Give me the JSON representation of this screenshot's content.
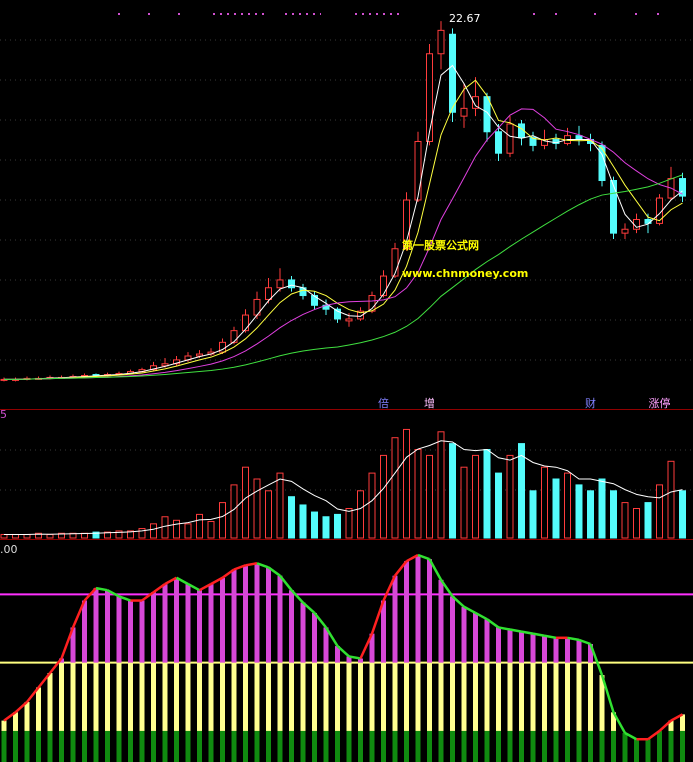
{
  "chart_data": [
    {
      "type": "candlestick",
      "ylim": [
        3.5,
        23.5
      ],
      "up_color": "#ff3c3c",
      "down_color": "#54fcfc",
      "moving_averages": [
        {
          "period": 3,
          "color": "#ffffff"
        },
        {
          "period": 5,
          "color": "#ffff40"
        },
        {
          "period": 10,
          "color": "#e040e0"
        },
        {
          "period": 30,
          "color": "#40e040"
        }
      ],
      "ohlc": [
        [
          4.25,
          4.4,
          4.2,
          4.3
        ],
        [
          4.3,
          4.4,
          4.2,
          4.3
        ],
        [
          4.3,
          4.45,
          4.25,
          4.35
        ],
        [
          4.35,
          4.45,
          4.3,
          4.35
        ],
        [
          4.35,
          4.5,
          4.3,
          4.4
        ],
        [
          4.4,
          4.5,
          4.35,
          4.4
        ],
        [
          4.4,
          4.55,
          4.35,
          4.45
        ],
        [
          4.45,
          4.6,
          4.4,
          4.5
        ],
        [
          4.55,
          4.6,
          4.45,
          4.5
        ],
        [
          4.5,
          4.65,
          4.45,
          4.55
        ],
        [
          4.55,
          4.7,
          4.5,
          4.6
        ],
        [
          4.6,
          4.8,
          4.55,
          4.7
        ],
        [
          4.7,
          4.9,
          4.65,
          4.8
        ],
        [
          4.8,
          5.2,
          4.75,
          5.0
        ],
        [
          5.0,
          5.4,
          4.9,
          5.1
        ],
        [
          5.1,
          5.5,
          5.0,
          5.3
        ],
        [
          5.3,
          5.7,
          5.2,
          5.5
        ],
        [
          5.5,
          5.8,
          5.4,
          5.6
        ],
        [
          5.6,
          5.9,
          5.5,
          5.7
        ],
        [
          5.7,
          6.4,
          5.6,
          6.2
        ],
        [
          6.2,
          7.0,
          6.1,
          6.8
        ],
        [
          6.8,
          7.9,
          6.7,
          7.6
        ],
        [
          7.6,
          8.8,
          7.4,
          8.4
        ],
        [
          8.4,
          9.5,
          8.2,
          9.0
        ],
        [
          9.0,
          10.0,
          8.8,
          9.4
        ],
        [
          9.4,
          9.6,
          8.8,
          9.0
        ],
        [
          9.0,
          9.2,
          8.4,
          8.6
        ],
        [
          8.6,
          8.8,
          7.9,
          8.1
        ],
        [
          8.1,
          8.4,
          7.6,
          7.9
        ],
        [
          7.9,
          8.0,
          7.2,
          7.4
        ],
        [
          7.3,
          7.7,
          7.0,
          7.4
        ],
        [
          7.4,
          8.0,
          7.3,
          7.8
        ],
        [
          7.8,
          8.8,
          7.7,
          8.6
        ],
        [
          8.6,
          9.9,
          8.5,
          9.6
        ],
        [
          9.6,
          11.3,
          9.5,
          11.0
        ],
        [
          11.0,
          13.9,
          10.9,
          13.5
        ],
        [
          13.5,
          17.0,
          13.4,
          16.5
        ],
        [
          16.5,
          21.5,
          16.3,
          21.0
        ],
        [
          21.0,
          22.67,
          20.2,
          22.2
        ],
        [
          22.0,
          22.3,
          17.5,
          18.0
        ],
        [
          17.8,
          19.5,
          17.2,
          18.2
        ],
        [
          18.2,
          19.8,
          17.8,
          18.8
        ],
        [
          18.8,
          19.0,
          16.5,
          17.0
        ],
        [
          17.0,
          17.4,
          15.5,
          15.9
        ],
        [
          15.9,
          17.8,
          15.7,
          17.4
        ],
        [
          17.4,
          17.6,
          16.3,
          16.7
        ],
        [
          16.7,
          17.0,
          16.0,
          16.3
        ],
        [
          16.3,
          17.1,
          16.1,
          16.6
        ],
        [
          16.6,
          16.9,
          16.1,
          16.4
        ],
        [
          16.4,
          17.2,
          16.3,
          16.8
        ],
        [
          16.8,
          17.3,
          16.3,
          16.6
        ],
        [
          16.6,
          16.9,
          16.0,
          16.4
        ],
        [
          16.3,
          16.5,
          14.2,
          14.5
        ],
        [
          14.5,
          14.7,
          11.5,
          11.8
        ],
        [
          11.8,
          12.3,
          11.5,
          12.0
        ],
        [
          12.0,
          12.8,
          11.8,
          12.5
        ],
        [
          12.5,
          12.8,
          11.8,
          12.3
        ],
        [
          12.3,
          13.8,
          12.2,
          13.6
        ],
        [
          13.6,
          15.2,
          13.5,
          14.6
        ],
        [
          14.6,
          14.9,
          13.4,
          13.7
        ]
      ],
      "high_label_index": 38,
      "events": [
        {
          "text": "倍",
          "index": 33,
          "color": "#8080ff"
        },
        {
          "text": "增",
          "index": 37,
          "color": "#ffc0ff"
        },
        {
          "text": "财",
          "index": 51,
          "color": "#8080ff"
        },
        {
          "text": "涨停",
          "index": 57,
          "color": "#ffa0ff"
        }
      ]
    },
    {
      "type": "bar",
      "pane_label": "5",
      "ylim": [
        0,
        100
      ],
      "moving_averages": [
        {
          "period": 5,
          "color": "#ffffff"
        }
      ],
      "values": [
        3,
        3,
        3,
        4,
        3,
        4,
        4,
        4,
        5,
        5,
        6,
        6,
        8,
        12,
        18,
        15,
        12,
        20,
        14,
        30,
        45,
        60,
        50,
        40,
        55,
        35,
        28,
        22,
        18,
        20,
        25,
        40,
        55,
        70,
        85,
        92,
        75,
        70,
        90,
        80,
        60,
        70,
        75,
        55,
        70,
        80,
        40,
        60,
        50,
        55,
        45,
        40,
        50,
        40,
        30,
        25,
        30,
        45,
        65,
        40
      ]
    },
    {
      "type": "bar",
      "pane_label": ".00",
      "ylim": [
        0,
        100
      ],
      "segments": [
        {
          "upto": 15,
          "color": "#108c10"
        },
        {
          "upto": 48,
          "color": "#ffff90"
        },
        {
          "upto": 100,
          "color": "#d848d8"
        }
      ],
      "levels": [
        {
          "value": 48,
          "color": "#ffff80"
        },
        {
          "value": 81,
          "color": "#ff30ff"
        }
      ],
      "rise_color": "#ff2020",
      "fall_color": "#30e030",
      "values": [
        20,
        24,
        29,
        36,
        43,
        50,
        65,
        78,
        84,
        83,
        80,
        78,
        78,
        82,
        86,
        89,
        86,
        83,
        86,
        89,
        93,
        95,
        96,
        94,
        90,
        83,
        77,
        72,
        65,
        56,
        51,
        50,
        62,
        78,
        90,
        97,
        100,
        98,
        88,
        80,
        75,
        72,
        69,
        65,
        64,
        63,
        62,
        61,
        60,
        60,
        59,
        57,
        42,
        24,
        14,
        11,
        11,
        15,
        20,
        23
      ]
    }
  ],
  "watermark": [
    "第一股票公式网",
    "www.chnmoney.com"
  ]
}
